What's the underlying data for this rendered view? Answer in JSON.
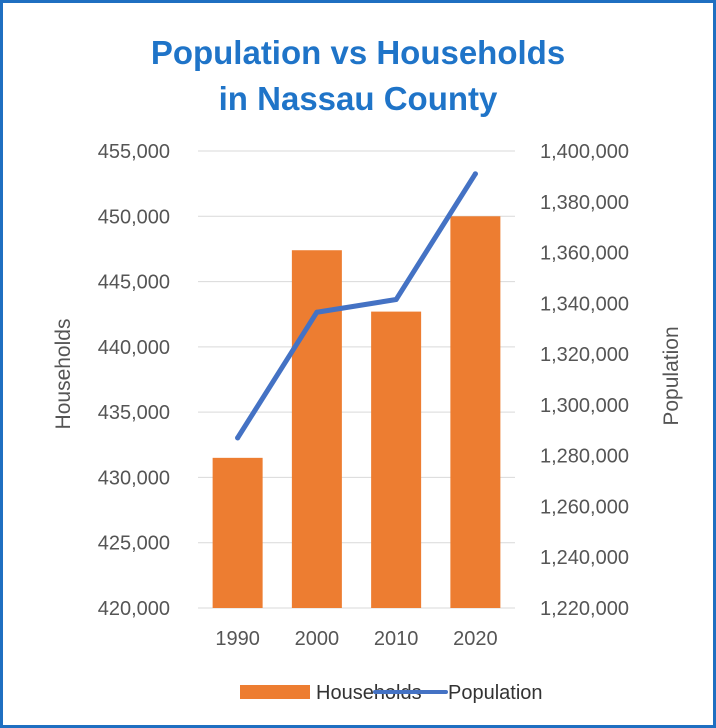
{
  "colors": {
    "border": "#1f6fc1",
    "title": "#1f74c8",
    "bars": "#ed7d31",
    "line": "#4472c4",
    "grid": "#d9d9d9",
    "text": "#555555"
  },
  "chart_data": {
    "type": "bar",
    "title": "Population vs Households",
    "subtitle": "in Nassau County",
    "categories": [
      "1990",
      "2000",
      "2010",
      "2020"
    ],
    "series": [
      {
        "name": "Households",
        "type": "bar",
        "axis": "left",
        "values": [
          431500,
          447400,
          442700,
          450000
        ]
      },
      {
        "name": "Population",
        "type": "line",
        "axis": "right",
        "values": [
          1287000,
          1336500,
          1341500,
          1391000
        ]
      }
    ],
    "ylabel": "Households",
    "y2label": "Population",
    "ylim": [
      420000,
      455000
    ],
    "y2lim": [
      1220000,
      1400000
    ],
    "yticks": [
      "420,000",
      "425,000",
      "430,000",
      "435,000",
      "440,000",
      "445,000",
      "450,000",
      "455,000"
    ],
    "y2ticks": [
      "1,220,000",
      "1,240,000",
      "1,260,000",
      "1,280,000",
      "1,300,000",
      "1,320,000",
      "1,340,000",
      "1,360,000",
      "1,380,000",
      "1,400,000"
    ],
    "grid": true,
    "legend": "bottom"
  }
}
